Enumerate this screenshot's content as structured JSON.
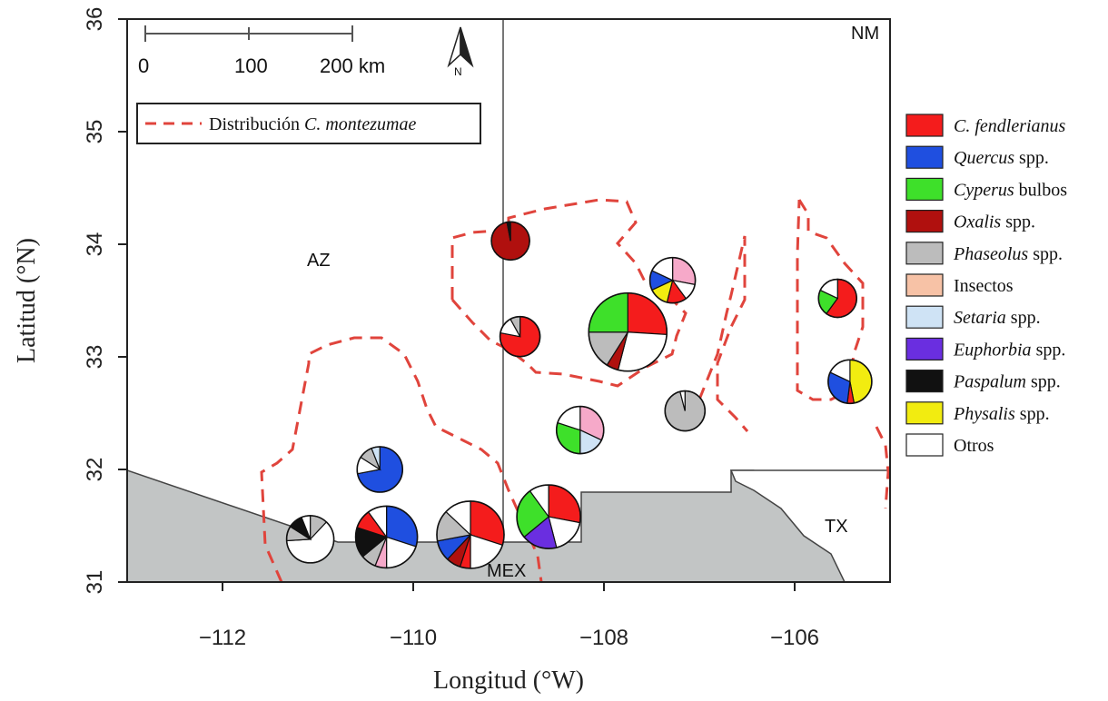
{
  "axes": {
    "xlabel": "Longitud (°W)",
    "ylabel": "Latitud (°N)",
    "xlim": [
      -113.0,
      -105.0
    ],
    "ylim": [
      31.0,
      36.0
    ],
    "x_ticks": [
      {
        "v": -112,
        "t": "−112"
      },
      {
        "v": -110,
        "t": "−110"
      },
      {
        "v": -108,
        "t": "−108"
      },
      {
        "v": -106,
        "t": "−106"
      }
    ],
    "y_ticks": [
      {
        "v": 31,
        "t": "31"
      },
      {
        "v": 32,
        "t": "32"
      },
      {
        "v": 33,
        "t": "33"
      },
      {
        "v": 34,
        "t": "34"
      },
      {
        "v": 35,
        "t": "35"
      },
      {
        "v": 36,
        "t": "36"
      }
    ]
  },
  "regions": {
    "az": "AZ",
    "nm": "NM",
    "tx": "TX",
    "mex": "MEX"
  },
  "scale_bar": {
    "labels": [
      "0",
      "100",
      "200 km"
    ]
  },
  "north_arrow": {
    "label": "N"
  },
  "distribution_legend": {
    "prefix": "Distribución ",
    "species": "C. montezumae",
    "line_color": "#e0443c"
  },
  "diet_categories": [
    {
      "italic": "C. fendlerianus",
      "plain": "",
      "color": "#f41c1c"
    },
    {
      "italic": "Quercus",
      "plain": " spp.",
      "color": "#1f4fe0"
    },
    {
      "italic": "Cyperus",
      "plain": " bulbos",
      "color": "#3ee02a"
    },
    {
      "italic": "Oxalis",
      "plain": " spp.",
      "color": "#b0100e"
    },
    {
      "italic": "Phaseolus",
      "plain": " spp.",
      "color": "#bcbcbc"
    },
    {
      "italic": "",
      "plain": "Insectos",
      "color": "#f7c2a6"
    },
    {
      "italic": "Setaria",
      "plain": " spp.",
      "color": "#cfe3f5"
    },
    {
      "italic": "Euphorbia",
      "plain": " spp.",
      "color": "#6a2ee0"
    },
    {
      "italic": "Paspalum",
      "plain": " spp.",
      "color": "#111111"
    },
    {
      "italic": "Physalis",
      "plain": " spp.",
      "color": "#f2ec10"
    },
    {
      "italic": "",
      "plain": "Otros",
      "color": "#ffffff"
    }
  ],
  "extra_colors": {
    "pink": "#f6a9c9"
  },
  "sites": [
    {
      "lon": -108.98,
      "lat": 34.03,
      "r": 21,
      "slices": [
        [
          "Oxalis",
          0.97
        ],
        [
          "Paspalum",
          0.03
        ]
      ]
    },
    {
      "lon": -108.88,
      "lat": 33.18,
      "r": 22,
      "slices": [
        [
          "C. fendlerianus",
          0.78
        ],
        [
          "Otros",
          0.14
        ],
        [
          "Phaseolus",
          0.08
        ]
      ]
    },
    {
      "lon": -107.75,
      "lat": 33.22,
      "r": 43,
      "slices": [
        [
          "C. fendlerianus",
          0.26
        ],
        [
          "Otros",
          0.28
        ],
        [
          "Oxalis",
          0.05
        ],
        [
          "Phaseolus",
          0.16
        ],
        [
          "Cyperus",
          0.25
        ]
      ]
    },
    {
      "lon": -107.28,
      "lat": 33.68,
      "r": 25,
      "slices": [
        [
          "Pink",
          0.28
        ],
        [
          "Otros",
          0.12
        ],
        [
          "C. fendlerianus",
          0.14
        ],
        [
          "Physalis",
          0.14
        ],
        [
          "Quercus",
          0.14
        ],
        [
          "Otros",
          0.18
        ]
      ]
    },
    {
      "lon": -108.25,
      "lat": 32.35,
      "r": 26,
      "slices": [
        [
          "Pink",
          0.32
        ],
        [
          "Setaria",
          0.18
        ],
        [
          "Cyperus",
          0.3
        ],
        [
          "Otros",
          0.2
        ]
      ]
    },
    {
      "lon": -107.15,
      "lat": 32.52,
      "r": 22,
      "slices": [
        [
          "Phaseolus",
          0.96
        ],
        [
          "Otros",
          0.04
        ]
      ]
    },
    {
      "lon": -105.55,
      "lat": 33.52,
      "r": 21,
      "slices": [
        [
          "C. fendlerianus",
          0.6
        ],
        [
          "Cyperus",
          0.22
        ],
        [
          "Otros",
          0.18
        ]
      ]
    },
    {
      "lon": -105.42,
      "lat": 32.78,
      "r": 24,
      "slices": [
        [
          "Physalis",
          0.47
        ],
        [
          "C. fendlerianus",
          0.05
        ],
        [
          "Quercus",
          0.3
        ],
        [
          "Otros",
          0.18
        ]
      ]
    },
    {
      "lon": -110.35,
      "lat": 32.0,
      "r": 25,
      "slices": [
        [
          "Quercus",
          0.72
        ],
        [
          "Otros",
          0.12
        ],
        [
          "Phaseolus",
          0.1
        ],
        [
          "Setaria",
          0.06
        ]
      ]
    },
    {
      "lon": -108.58,
      "lat": 31.58,
      "r": 35,
      "slices": [
        [
          "C. fendlerianus",
          0.28
        ],
        [
          "Otros",
          0.18
        ],
        [
          "Euphorbia",
          0.18
        ],
        [
          "Cyperus",
          0.26
        ],
        [
          "Otros",
          0.1
        ]
      ]
    },
    {
      "lon": -109.4,
      "lat": 31.42,
      "r": 37,
      "slices": [
        [
          "C. fendlerianus",
          0.3
        ],
        [
          "Otros",
          0.2
        ],
        [
          "C. fendlerianus",
          0.05
        ],
        [
          "Oxalis",
          0.07
        ],
        [
          "Quercus",
          0.1
        ],
        [
          "Phaseolus",
          0.15
        ],
        [
          "Otros",
          0.13
        ]
      ]
    },
    {
      "lon": -110.28,
      "lat": 31.4,
      "r": 34,
      "slices": [
        [
          "Quercus",
          0.3
        ],
        [
          "Otros",
          0.2
        ],
        [
          "Pink",
          0.06
        ],
        [
          "Phaseolus",
          0.08
        ],
        [
          "Paspalum",
          0.16
        ],
        [
          "C. fendlerianus",
          0.1
        ],
        [
          "Otros",
          0.1
        ]
      ]
    },
    {
      "lon": -111.08,
      "lat": 31.38,
      "r": 26,
      "slices": [
        [
          "Phaseolus",
          0.12
        ],
        [
          "Otros",
          0.62
        ],
        [
          "Phaseolus",
          0.1
        ],
        [
          "Paspalum",
          0.1
        ],
        [
          "Otros",
          0.06
        ]
      ]
    }
  ]
}
